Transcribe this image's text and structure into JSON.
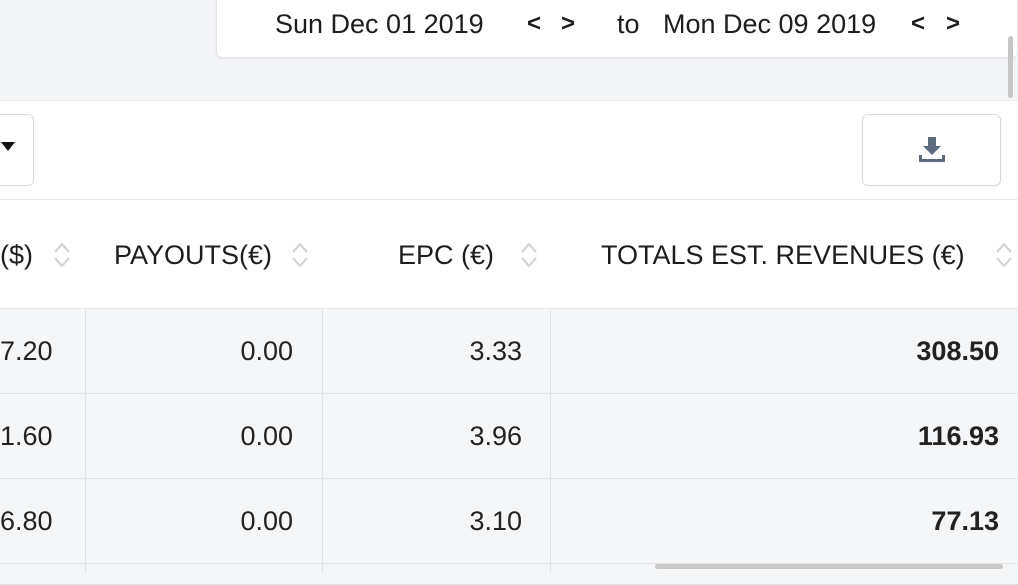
{
  "date_range": {
    "start": "Sun Dec 01 2019",
    "separator": "to",
    "end": "Mon Dec 09 2019",
    "prev_glyph": "<",
    "next_glyph": ">"
  },
  "toolbar": {
    "dropdown_icon": "caret-down-icon",
    "download_icon": "download-icon"
  },
  "table": {
    "columns": [
      {
        "label": "($)"
      },
      {
        "label": "PAYOUTS(€)"
      },
      {
        "label": "EPC (€)"
      },
      {
        "label": "TOTALS EST. REVENUES (€)"
      }
    ],
    "rows": [
      [
        "7.20",
        "0.00",
        "3.33",
        "308.50"
      ],
      [
        "1.60",
        "0.00",
        "3.96",
        "116.93"
      ],
      [
        "6.80",
        "0.00",
        "3.10",
        "77.13"
      ]
    ]
  },
  "colors": {
    "background": "#f4f5f7",
    "row_background": "#f4f6f8",
    "icon_gray": "#5d6b7e",
    "text": "#1d1d1f"
  }
}
